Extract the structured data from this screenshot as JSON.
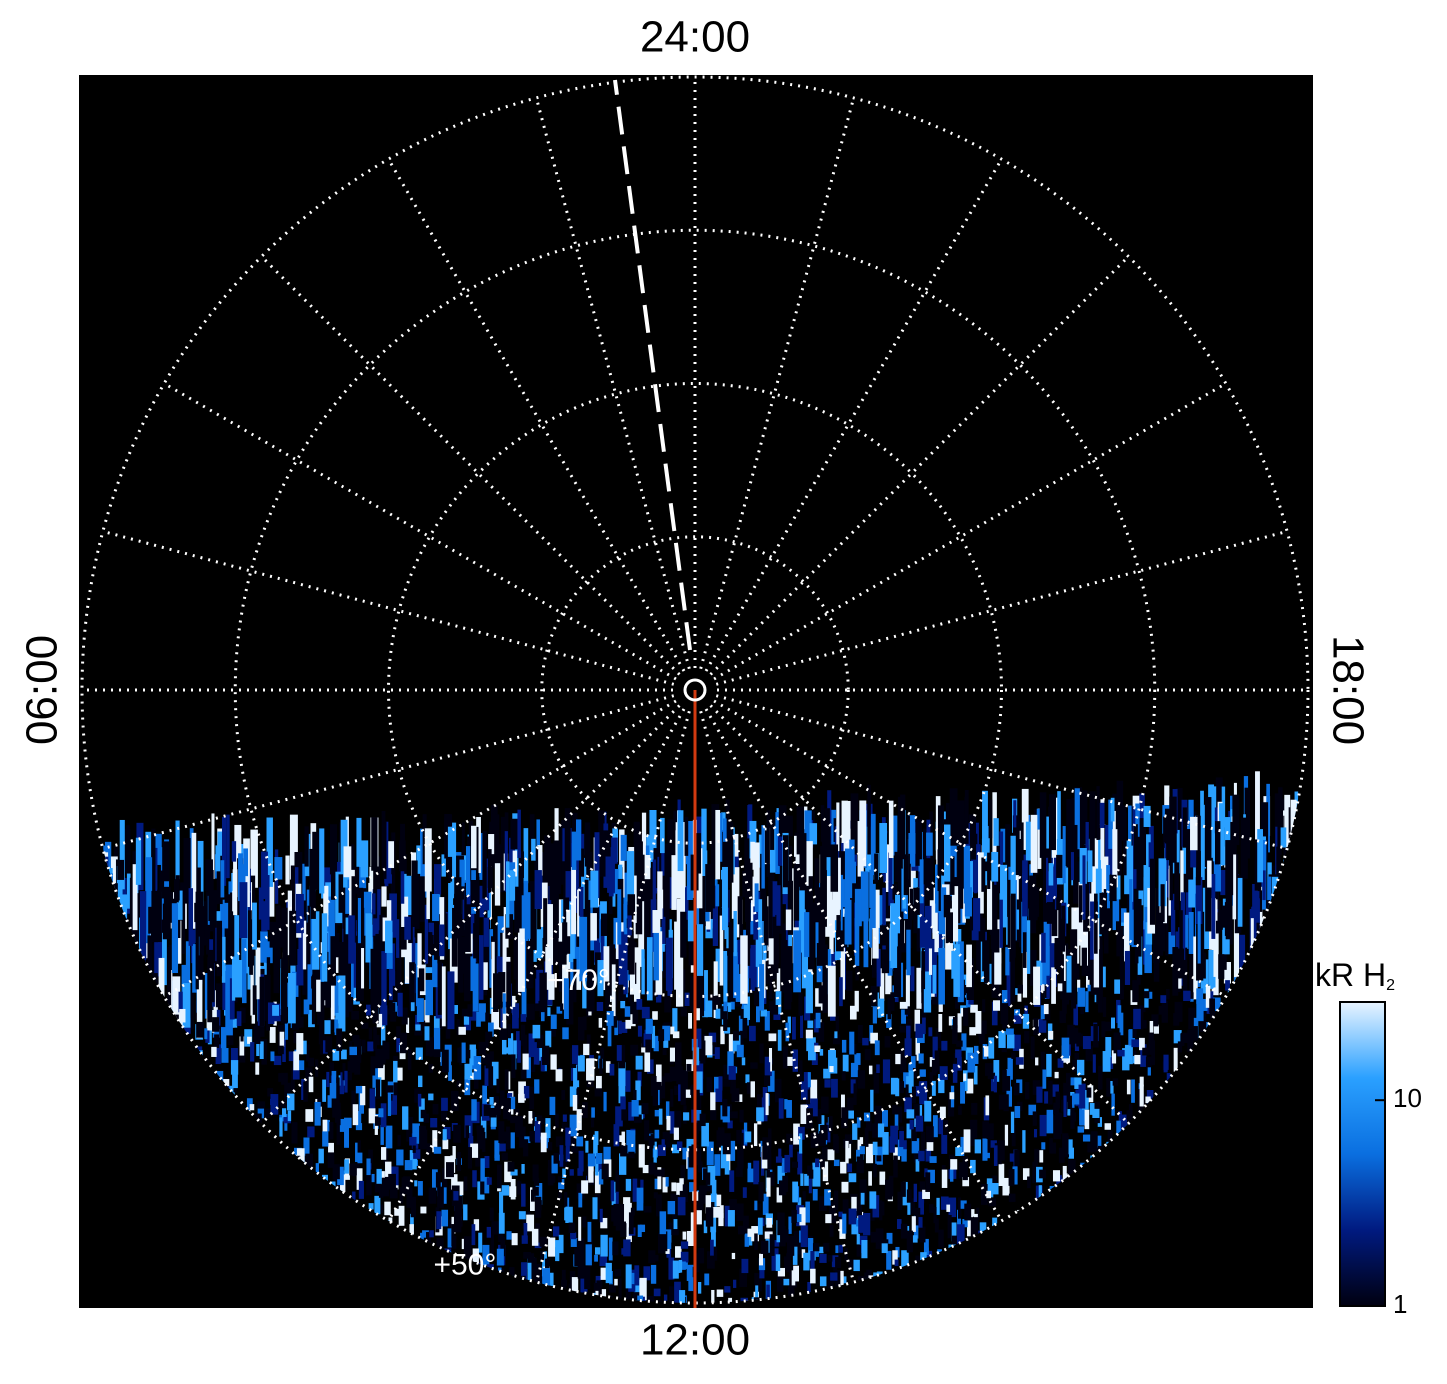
{
  "chart_data": {
    "type": "polar",
    "time_labels": [
      {
        "value": 24,
        "label": "24:00"
      },
      {
        "value": 6,
        "label": "06:00"
      },
      {
        "value": 12,
        "label": "12:00"
      },
      {
        "value": 18,
        "label": "18:00"
      }
    ],
    "hour_ticks": [
      0,
      1,
      2,
      3,
      4,
      5,
      6,
      7,
      8,
      9,
      10,
      11,
      12,
      13,
      14,
      15,
      16,
      17,
      18,
      19,
      20,
      21,
      22,
      23
    ],
    "lat_lim": [
      90,
      50
    ],
    "lat_ticks": [
      80,
      70,
      60,
      50
    ],
    "lat_labels": [
      {
        "value": 70,
        "label": "+70°"
      },
      {
        "value": 50,
        "label": "+50°"
      }
    ],
    "colorbar": {
      "label": "kR H",
      "label_sub": "2",
      "log": true,
      "lim": [
        1,
        30
      ],
      "ticks": [
        1,
        10
      ],
      "colors": [
        "#000010",
        "#001a80",
        "#0a6fe0",
        "#2aa0ff",
        "#e8f4ff"
      ]
    }
  }
}
